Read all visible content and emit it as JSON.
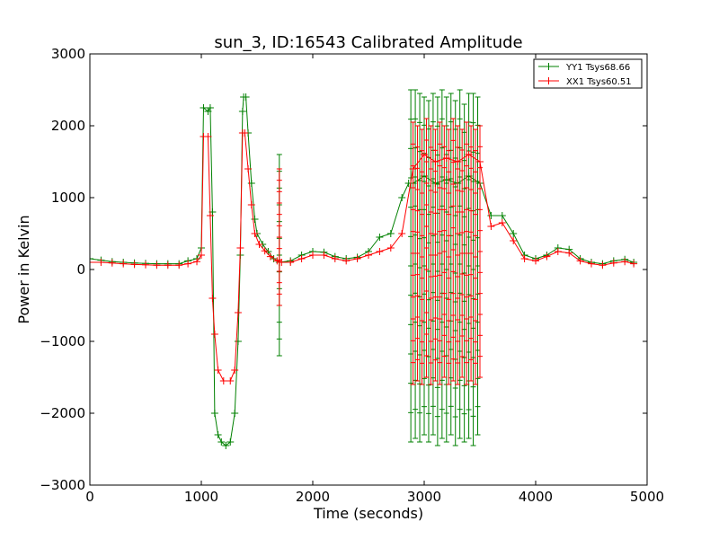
{
  "chart_data": {
    "type": "line",
    "title": "sun_3, ID:16543 Calibrated Amplitude",
    "xlabel": "Time (seconds)",
    "ylabel": "Power in Kelvin",
    "xlim": [
      0,
      5000
    ],
    "ylim": [
      -3000,
      3000
    ],
    "xticks": [
      "0",
      "1000",
      "2000",
      "3000",
      "4000",
      "5000"
    ],
    "yticks": [
      "−3000",
      "−2000",
      "−1000",
      "0",
      "1000",
      "2000",
      "3000"
    ],
    "grid": false,
    "legend_position": "top-right",
    "series": [
      {
        "name": "YY1 Tsys68.66",
        "color": "#008000",
        "marker": "+",
        "points": [
          [
            0,
            150
          ],
          [
            100,
            130
          ],
          [
            200,
            110
          ],
          [
            300,
            100
          ],
          [
            400,
            90
          ],
          [
            500,
            85
          ],
          [
            600,
            80
          ],
          [
            700,
            80
          ],
          [
            800,
            80
          ],
          [
            880,
            120
          ],
          [
            960,
            150
          ],
          [
            1000,
            300
          ],
          [
            1020,
            2250
          ],
          [
            1060,
            2200
          ],
          [
            1080,
            2250
          ],
          [
            1100,
            800
          ],
          [
            1120,
            -2000
          ],
          [
            1150,
            -2300
          ],
          [
            1180,
            -2400
          ],
          [
            1220,
            -2450
          ],
          [
            1260,
            -2400
          ],
          [
            1300,
            -2000
          ],
          [
            1330,
            -1000
          ],
          [
            1350,
            200
          ],
          [
            1370,
            2200
          ],
          [
            1380,
            2400
          ],
          [
            1400,
            2400
          ],
          [
            1420,
            1900
          ],
          [
            1450,
            1200
          ],
          [
            1480,
            700
          ],
          [
            1500,
            500
          ],
          [
            1550,
            350
          ],
          [
            1600,
            250
          ],
          [
            1650,
            150
          ],
          [
            1700,
            100
          ],
          [
            1800,
            120
          ],
          [
            1900,
            200
          ],
          [
            2000,
            250
          ],
          [
            2100,
            240
          ],
          [
            2200,
            180
          ],
          [
            2300,
            150
          ],
          [
            2400,
            170
          ],
          [
            2500,
            250
          ],
          [
            2600,
            450
          ],
          [
            2700,
            500
          ],
          [
            2800,
            1000
          ],
          [
            2860,
            1200
          ],
          [
            2900,
            1200
          ],
          [
            3000,
            1300
          ],
          [
            3100,
            1200
          ],
          [
            3200,
            1250
          ],
          [
            3300,
            1200
          ],
          [
            3400,
            1300
          ],
          [
            3500,
            1200
          ],
          [
            3600,
            750
          ],
          [
            3700,
            750
          ],
          [
            3800,
            500
          ],
          [
            3900,
            200
          ],
          [
            4000,
            150
          ],
          [
            4100,
            200
          ],
          [
            4200,
            300
          ],
          [
            4300,
            280
          ],
          [
            4400,
            150
          ],
          [
            4500,
            100
          ],
          [
            4600,
            80
          ],
          [
            4700,
            120
          ],
          [
            4800,
            140
          ],
          [
            4880,
            100
          ]
        ],
        "spans": [
          [
            2880,
            -2400,
            2500
          ],
          [
            2920,
            -2350,
            2500
          ],
          [
            2960,
            -2400,
            2450
          ],
          [
            3000,
            -2300,
            2400
          ],
          [
            3040,
            -2400,
            2350
          ],
          [
            3080,
            -2300,
            2450
          ],
          [
            3120,
            -2450,
            2400
          ],
          [
            3160,
            -2350,
            2500
          ],
          [
            3200,
            -2400,
            2400
          ],
          [
            3240,
            -2300,
            2450
          ],
          [
            3280,
            -2450,
            2350
          ],
          [
            3320,
            -2350,
            2500
          ],
          [
            3360,
            -2400,
            2300
          ],
          [
            3400,
            -2350,
            2450
          ],
          [
            3440,
            -2450,
            2450
          ],
          [
            3480,
            -2300,
            2400
          ],
          [
            1700,
            -1200,
            1600
          ]
        ]
      },
      {
        "name": "XX1 Tsys60.51",
        "color": "#ff0000",
        "marker": "+",
        "points": [
          [
            0,
            100
          ],
          [
            100,
            100
          ],
          [
            200,
            90
          ],
          [
            300,
            80
          ],
          [
            400,
            70
          ],
          [
            500,
            65
          ],
          [
            600,
            60
          ],
          [
            700,
            60
          ],
          [
            800,
            60
          ],
          [
            880,
            80
          ],
          [
            960,
            110
          ],
          [
            1000,
            200
          ],
          [
            1020,
            1850
          ],
          [
            1060,
            1850
          ],
          [
            1080,
            750
          ],
          [
            1100,
            -400
          ],
          [
            1120,
            -900
          ],
          [
            1150,
            -1400
          ],
          [
            1200,
            -1550
          ],
          [
            1260,
            -1550
          ],
          [
            1300,
            -1400
          ],
          [
            1330,
            -600
          ],
          [
            1350,
            300
          ],
          [
            1370,
            1900
          ],
          [
            1390,
            1900
          ],
          [
            1420,
            1400
          ],
          [
            1450,
            900
          ],
          [
            1480,
            500
          ],
          [
            1520,
            350
          ],
          [
            1570,
            260
          ],
          [
            1620,
            180
          ],
          [
            1680,
            120
          ],
          [
            1720,
            100
          ],
          [
            1800,
            100
          ],
          [
            1900,
            150
          ],
          [
            2000,
            200
          ],
          [
            2100,
            200
          ],
          [
            2200,
            150
          ],
          [
            2300,
            120
          ],
          [
            2400,
            150
          ],
          [
            2500,
            200
          ],
          [
            2600,
            250
          ],
          [
            2700,
            300
          ],
          [
            2800,
            500
          ],
          [
            2900,
            1400
          ],
          [
            3000,
            1600
          ],
          [
            3100,
            1500
          ],
          [
            3200,
            1550
          ],
          [
            3300,
            1500
          ],
          [
            3400,
            1600
          ],
          [
            3500,
            1500
          ],
          [
            3600,
            600
          ],
          [
            3700,
            650
          ],
          [
            3800,
            400
          ],
          [
            3900,
            150
          ],
          [
            4000,
            120
          ],
          [
            4100,
            180
          ],
          [
            4200,
            250
          ],
          [
            4300,
            230
          ],
          [
            4400,
            120
          ],
          [
            4500,
            80
          ],
          [
            4600,
            60
          ],
          [
            4700,
            90
          ],
          [
            4800,
            110
          ],
          [
            4880,
            80
          ]
        ],
        "spans": [
          [
            2900,
            -1600,
            2050
          ],
          [
            2940,
            -1550,
            2000
          ],
          [
            2980,
            -1600,
            1950
          ],
          [
            3020,
            -1500,
            2100
          ],
          [
            3060,
            -1600,
            2000
          ],
          [
            3100,
            -1550,
            1950
          ],
          [
            3140,
            -1600,
            2050
          ],
          [
            3180,
            -1500,
            2000
          ],
          [
            3220,
            -1600,
            1950
          ],
          [
            3260,
            -1550,
            2100
          ],
          [
            3300,
            -1600,
            2000
          ],
          [
            3340,
            -1500,
            1950
          ],
          [
            3380,
            -1600,
            2050
          ],
          [
            3420,
            -1550,
            2000
          ],
          [
            3460,
            -1600,
            1950
          ],
          [
            3500,
            -1500,
            2000
          ],
          [
            1700,
            -500,
            1400
          ]
        ]
      }
    ]
  }
}
